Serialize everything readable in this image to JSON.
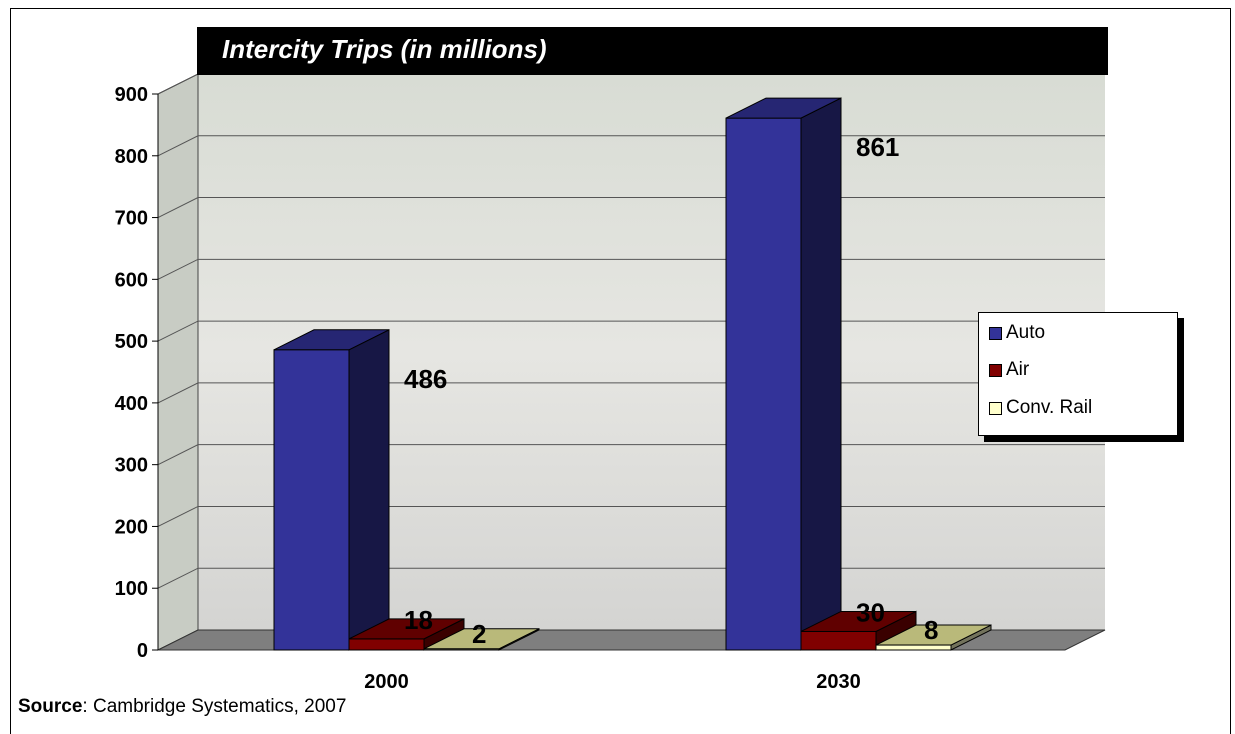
{
  "chart_data": {
    "type": "bar",
    "title": "Intercity Trips (in millions)",
    "categories": [
      "2000",
      "2030"
    ],
    "series": [
      {
        "name": "Auto",
        "values": [
          486,
          861
        ],
        "color": "#333399",
        "data_labels": [
          "486",
          "861"
        ]
      },
      {
        "name": "Air",
        "values": [
          18,
          30
        ],
        "color": "#800000",
        "data_labels": [
          "18",
          "30"
        ]
      },
      {
        "name": "Conv. Rail",
        "values": [
          2,
          8
        ],
        "color": "#FFFFCC",
        "data_labels": [
          "2",
          "8"
        ]
      }
    ],
    "ylim": [
      0,
      900
    ],
    "yticks": [
      "0",
      "100",
      "200",
      "300",
      "400",
      "500",
      "600",
      "700",
      "800",
      "900"
    ],
    "xlabel": "",
    "ylabel": "",
    "grid": true,
    "legend_position": "right",
    "style": "3d-column with photo background"
  },
  "source": {
    "label": "Source",
    "text": ":  Cambridge Systematics, 2007"
  }
}
